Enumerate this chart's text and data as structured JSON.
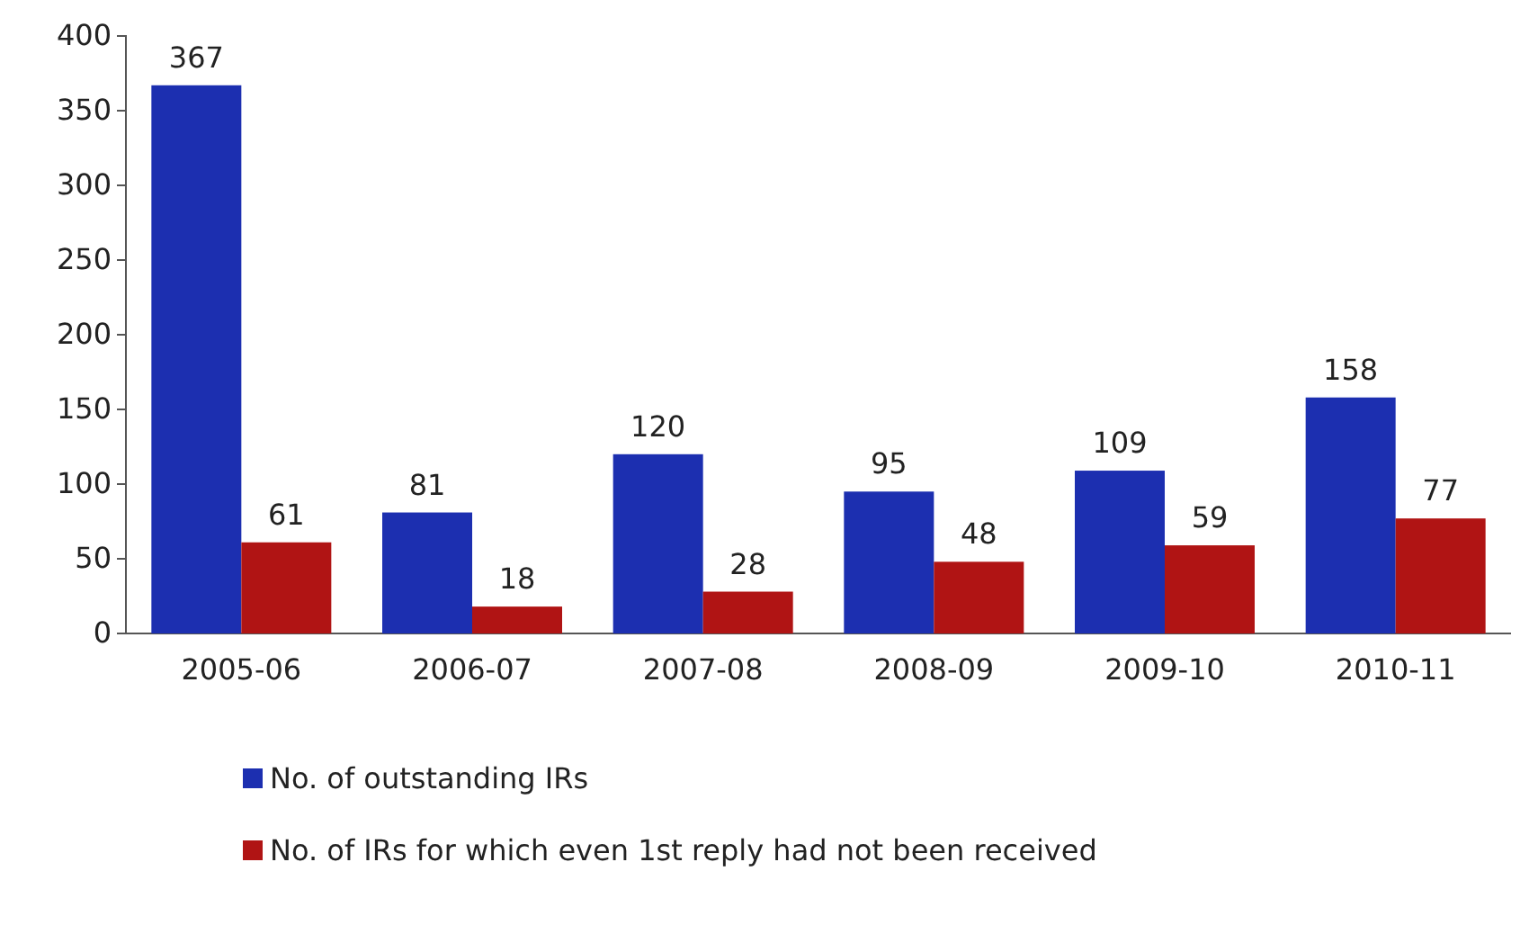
{
  "chart_data": {
    "type": "bar",
    "categories": [
      "2005-06",
      "2006-07",
      "2007-08",
      "2008-09",
      "2009-10",
      "2010-11"
    ],
    "series": [
      {
        "name": "No. of outstanding IRs",
        "color": "#1c2fb0",
        "values": [
          367,
          81,
          120,
          95,
          109,
          158
        ]
      },
      {
        "name": "No. of IRs for which even 1st reply had not been received",
        "color": "#b01414",
        "values": [
          61,
          18,
          28,
          48,
          59,
          77
        ]
      }
    ],
    "ylim": [
      0,
      400
    ],
    "yticks": [
      0,
      50,
      100,
      150,
      200,
      250,
      300,
      350,
      400
    ],
    "grid": false,
    "legend": "bottom",
    "data_labels": true
  }
}
